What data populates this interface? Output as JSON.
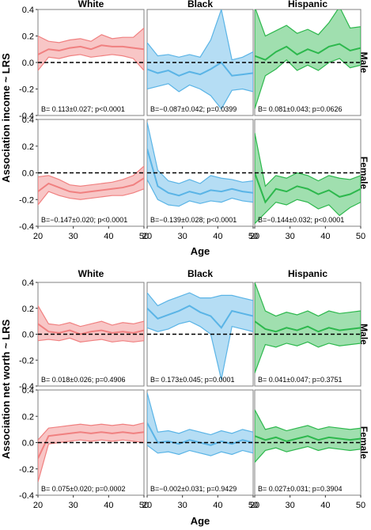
{
  "colors": {
    "White": "#f08080",
    "Black": "#5ab4e6",
    "Hispanic": "#2db84d"
  },
  "chart_data": [
    {
      "type": "line",
      "ylabel": "Association income ~ LRS",
      "xlabel": "Age",
      "xlim": [
        20,
        50
      ],
      "ylim": [
        -0.4,
        0.4
      ],
      "xticks": [
        20,
        30,
        40,
        50
      ],
      "yticks": [
        -0.4,
        -0.2,
        0.0,
        0.2,
        0.4
      ],
      "grid": false,
      "columns": [
        "White",
        "Black",
        "Hispanic"
      ],
      "rows": [
        "Male",
        "Female"
      ],
      "panels": [
        {
          "race": "White",
          "sex": "Male",
          "annotation": "B= 0.113±0.027; p<0.0001",
          "x": [
            20,
            23,
            26,
            29,
            32,
            35,
            38,
            41,
            44,
            47,
            50
          ],
          "y": [
            0.06,
            0.1,
            0.09,
            0.11,
            0.12,
            0.1,
            0.13,
            0.12,
            0.12,
            0.11,
            0.1
          ],
          "lower": [
            -0.06,
            0.04,
            0.03,
            0.05,
            0.06,
            0.04,
            0.05,
            0.06,
            0.05,
            0.03,
            -0.06
          ],
          "upper": [
            0.2,
            0.16,
            0.15,
            0.17,
            0.18,
            0.16,
            0.21,
            0.18,
            0.19,
            0.19,
            0.26
          ]
        },
        {
          "race": "Black",
          "sex": "Male",
          "annotation": "B=−0.087±0.042; p=0.0399",
          "x": [
            20,
            23,
            26,
            29,
            32,
            35,
            38,
            41,
            44,
            47,
            50
          ],
          "y": [
            -0.05,
            -0.08,
            -0.06,
            -0.1,
            -0.07,
            -0.09,
            -0.05,
            0.0,
            -0.1,
            -0.09,
            -0.08
          ],
          "lower": [
            -0.2,
            -0.18,
            -0.16,
            -0.22,
            -0.17,
            -0.2,
            -0.25,
            -0.35,
            -0.21,
            -0.2,
            -0.22
          ],
          "upper": [
            0.15,
            0.05,
            0.06,
            0.04,
            0.06,
            0.04,
            0.17,
            0.4,
            0.02,
            0.04,
            0.08
          ]
        },
        {
          "race": "Hispanic",
          "sex": "Male",
          "annotation": "B= 0.081±0.043; p=0.0626",
          "x": [
            20,
            23,
            26,
            29,
            32,
            35,
            38,
            41,
            44,
            47,
            50
          ],
          "y": [
            0.05,
            0.02,
            0.08,
            0.12,
            0.06,
            0.1,
            0.07,
            0.12,
            0.14,
            0.09,
            0.11
          ],
          "lower": [
            -0.35,
            -0.1,
            -0.05,
            0.02,
            -0.06,
            -0.02,
            -0.06,
            0.0,
            0.03,
            -0.04,
            -0.02
          ],
          "upper": [
            0.42,
            0.2,
            0.24,
            0.28,
            0.22,
            0.25,
            0.21,
            0.3,
            0.42,
            0.26,
            0.27
          ]
        },
        {
          "race": "White",
          "sex": "Female",
          "annotation": "B=−0.147±0.020; p<0.0001",
          "x": [
            20,
            23,
            26,
            29,
            32,
            35,
            38,
            41,
            44,
            47,
            50
          ],
          "y": [
            -0.14,
            -0.08,
            -0.11,
            -0.14,
            -0.15,
            -0.14,
            -0.13,
            -0.12,
            -0.11,
            -0.09,
            -0.04
          ],
          "lower": [
            -0.24,
            -0.14,
            -0.17,
            -0.19,
            -0.2,
            -0.19,
            -0.18,
            -0.17,
            -0.17,
            -0.15,
            -0.12
          ],
          "upper": [
            -0.03,
            -0.02,
            -0.05,
            -0.09,
            -0.1,
            -0.09,
            -0.08,
            -0.07,
            -0.05,
            -0.02,
            0.05
          ]
        },
        {
          "race": "Black",
          "sex": "Female",
          "annotation": "B=−0.139±0.028; p<0.0001",
          "x": [
            20,
            23,
            26,
            29,
            32,
            35,
            38,
            41,
            44,
            47,
            50
          ],
          "y": [
            0.18,
            -0.1,
            -0.15,
            -0.17,
            -0.14,
            -0.16,
            -0.13,
            -0.14,
            -0.12,
            -0.14,
            -0.15
          ],
          "lower": [
            -0.05,
            -0.2,
            -0.24,
            -0.25,
            -0.21,
            -0.23,
            -0.21,
            -0.22,
            -0.19,
            -0.21,
            -0.22
          ],
          "upper": [
            0.38,
            0.02,
            -0.06,
            -0.08,
            -0.05,
            -0.08,
            -0.02,
            -0.04,
            -0.05,
            -0.07,
            -0.06
          ]
        },
        {
          "race": "Hispanic",
          "sex": "Female",
          "annotation": "B=−0.144±0.032; p<0.0001",
          "x": [
            20,
            23,
            26,
            29,
            32,
            35,
            38,
            41,
            44,
            47,
            50
          ],
          "y": [
            0.0,
            -0.22,
            -0.12,
            -0.14,
            -0.1,
            -0.12,
            -0.16,
            -0.13,
            -0.18,
            -0.16,
            -0.12
          ],
          "lower": [
            -0.38,
            -0.3,
            -0.22,
            -0.24,
            -0.2,
            -0.22,
            -0.27,
            -0.24,
            -0.32,
            -0.26,
            -0.22
          ],
          "upper": [
            0.3,
            -0.1,
            -0.02,
            -0.04,
            0.0,
            -0.02,
            -0.06,
            -0.02,
            -0.04,
            -0.05,
            -0.02
          ]
        }
      ]
    },
    {
      "type": "line",
      "ylabel": "Association net worth ~ LRS",
      "xlabel": "Age",
      "xlim": [
        20,
        50
      ],
      "ylim": [
        -0.4,
        0.4
      ],
      "xticks": [
        20,
        30,
        40,
        50
      ],
      "yticks": [
        -0.4,
        -0.2,
        0.0,
        0.2,
        0.4
      ],
      "grid": false,
      "columns": [
        "White",
        "Black",
        "Hispanic"
      ],
      "rows": [
        "Male",
        "Female"
      ],
      "panels": [
        {
          "race": "White",
          "sex": "Male",
          "annotation": "B= 0.018±0.026; p=0.4906",
          "x": [
            20,
            23,
            26,
            29,
            32,
            35,
            38,
            41,
            44,
            47,
            50
          ],
          "y": [
            0.08,
            0.02,
            0.01,
            0.03,
            0.0,
            0.02,
            0.03,
            0.01,
            0.02,
            0.01,
            0.03
          ],
          "lower": [
            -0.05,
            -0.04,
            -0.05,
            -0.03,
            -0.06,
            -0.05,
            -0.04,
            -0.06,
            -0.05,
            -0.06,
            -0.05
          ],
          "upper": [
            0.22,
            0.08,
            0.07,
            0.09,
            0.06,
            0.08,
            0.1,
            0.07,
            0.09,
            0.08,
            0.1
          ]
        },
        {
          "race": "Black",
          "sex": "Male",
          "annotation": "B= 0.173±0.045; p=0.0001",
          "x": [
            20,
            23,
            26,
            29,
            32,
            35,
            38,
            41,
            44,
            47,
            50
          ],
          "y": [
            0.2,
            0.12,
            0.15,
            0.18,
            0.22,
            0.17,
            0.14,
            0.05,
            0.18,
            0.16,
            0.14
          ],
          "lower": [
            0.05,
            0.02,
            0.04,
            0.08,
            0.1,
            0.06,
            0.0,
            -0.35,
            0.06,
            0.04,
            0.02
          ],
          "upper": [
            0.32,
            0.22,
            0.26,
            0.29,
            0.32,
            0.28,
            0.28,
            0.3,
            0.3,
            0.28,
            0.26
          ]
        },
        {
          "race": "Hispanic",
          "sex": "Male",
          "annotation": "B= 0.041±0.047; p=0.3751",
          "x": [
            20,
            23,
            26,
            29,
            32,
            35,
            38,
            41,
            44,
            47,
            50
          ],
          "y": [
            0.1,
            0.04,
            0.02,
            0.05,
            0.03,
            0.06,
            0.02,
            0.05,
            0.03,
            0.04,
            0.05
          ],
          "lower": [
            -0.3,
            -0.08,
            -0.1,
            -0.07,
            -0.09,
            -0.06,
            -0.1,
            -0.07,
            -0.09,
            -0.08,
            -0.07
          ],
          "upper": [
            0.4,
            0.18,
            0.14,
            0.17,
            0.15,
            0.18,
            0.14,
            0.18,
            0.16,
            0.17,
            0.18
          ]
        },
        {
          "race": "White",
          "sex": "Female",
          "annotation": "B= 0.075±0.020; p=0.0002",
          "x": [
            20,
            23,
            26,
            29,
            32,
            35,
            38,
            41,
            44,
            47,
            50
          ],
          "y": [
            -0.12,
            0.05,
            0.06,
            0.07,
            0.08,
            0.07,
            0.08,
            0.07,
            0.08,
            0.07,
            0.08
          ],
          "lower": [
            -0.3,
            -0.01,
            0.0,
            0.01,
            0.02,
            0.01,
            0.02,
            0.01,
            0.02,
            0.01,
            0.0
          ],
          "upper": [
            0.02,
            0.11,
            0.12,
            0.13,
            0.14,
            0.13,
            0.14,
            0.13,
            0.14,
            0.13,
            0.15
          ]
        },
        {
          "race": "Black",
          "sex": "Female",
          "annotation": "B=−0.002±0.031; p=0.9429",
          "x": [
            20,
            23,
            26,
            29,
            32,
            35,
            38,
            41,
            44,
            47,
            50
          ],
          "y": [
            0.15,
            0.0,
            0.01,
            -0.01,
            0.02,
            0.0,
            -0.02,
            0.01,
            -0.01,
            0.02,
            0.0
          ],
          "lower": [
            -0.02,
            -0.08,
            -0.07,
            -0.09,
            -0.06,
            -0.08,
            -0.1,
            -0.07,
            -0.09,
            -0.06,
            -0.08
          ],
          "upper": [
            0.38,
            0.08,
            0.09,
            0.07,
            0.1,
            0.08,
            0.06,
            0.09,
            0.07,
            0.1,
            0.08
          ]
        },
        {
          "race": "Hispanic",
          "sex": "Female",
          "annotation": "B= 0.027±0.031; p=0.3904",
          "x": [
            20,
            23,
            26,
            29,
            32,
            35,
            38,
            41,
            44,
            47,
            50
          ],
          "y": [
            0.05,
            0.02,
            0.04,
            0.01,
            0.03,
            0.05,
            0.02,
            0.04,
            0.03,
            0.02,
            0.03
          ],
          "lower": [
            -0.15,
            -0.06,
            -0.04,
            -0.07,
            -0.05,
            -0.03,
            -0.06,
            -0.04,
            -0.05,
            -0.06,
            -0.05
          ],
          "upper": [
            0.25,
            0.1,
            0.12,
            0.09,
            0.11,
            0.13,
            0.1,
            0.12,
            0.11,
            0.1,
            0.11
          ]
        }
      ]
    }
  ]
}
